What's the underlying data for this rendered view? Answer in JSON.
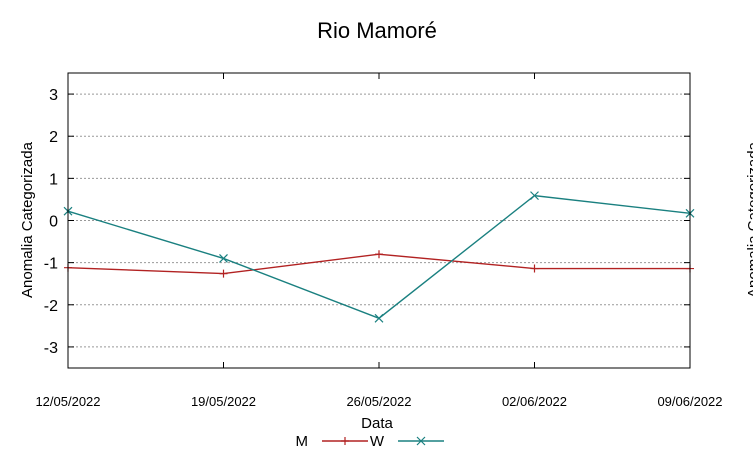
{
  "chart_data": {
    "type": "line",
    "title": "Rio Mamoré",
    "xlabel": "Data",
    "ylabel": "Anomalia Categorizada",
    "right_ylabel": "Anomalia Categorizada",
    "categories": [
      "12/05/2022",
      "19/05/2022",
      "26/05/2022",
      "02/06/2022",
      "09/06/2022"
    ],
    "yticks": [
      3,
      2,
      1,
      0,
      -1,
      -2,
      -3
    ],
    "ylim": [
      -3.5,
      3.5
    ],
    "grid": true,
    "legend_position": "bottom",
    "series": [
      {
        "name": "M",
        "values": [
          -1.12,
          -1.26,
          -0.8,
          -1.14,
          -1.14
        ],
        "color": "#b22222",
        "marker": "plus"
      },
      {
        "name": "W",
        "values": [
          0.22,
          -0.9,
          -2.32,
          0.59,
          0.17
        ],
        "color": "#1a8080",
        "marker": "x"
      }
    ]
  }
}
